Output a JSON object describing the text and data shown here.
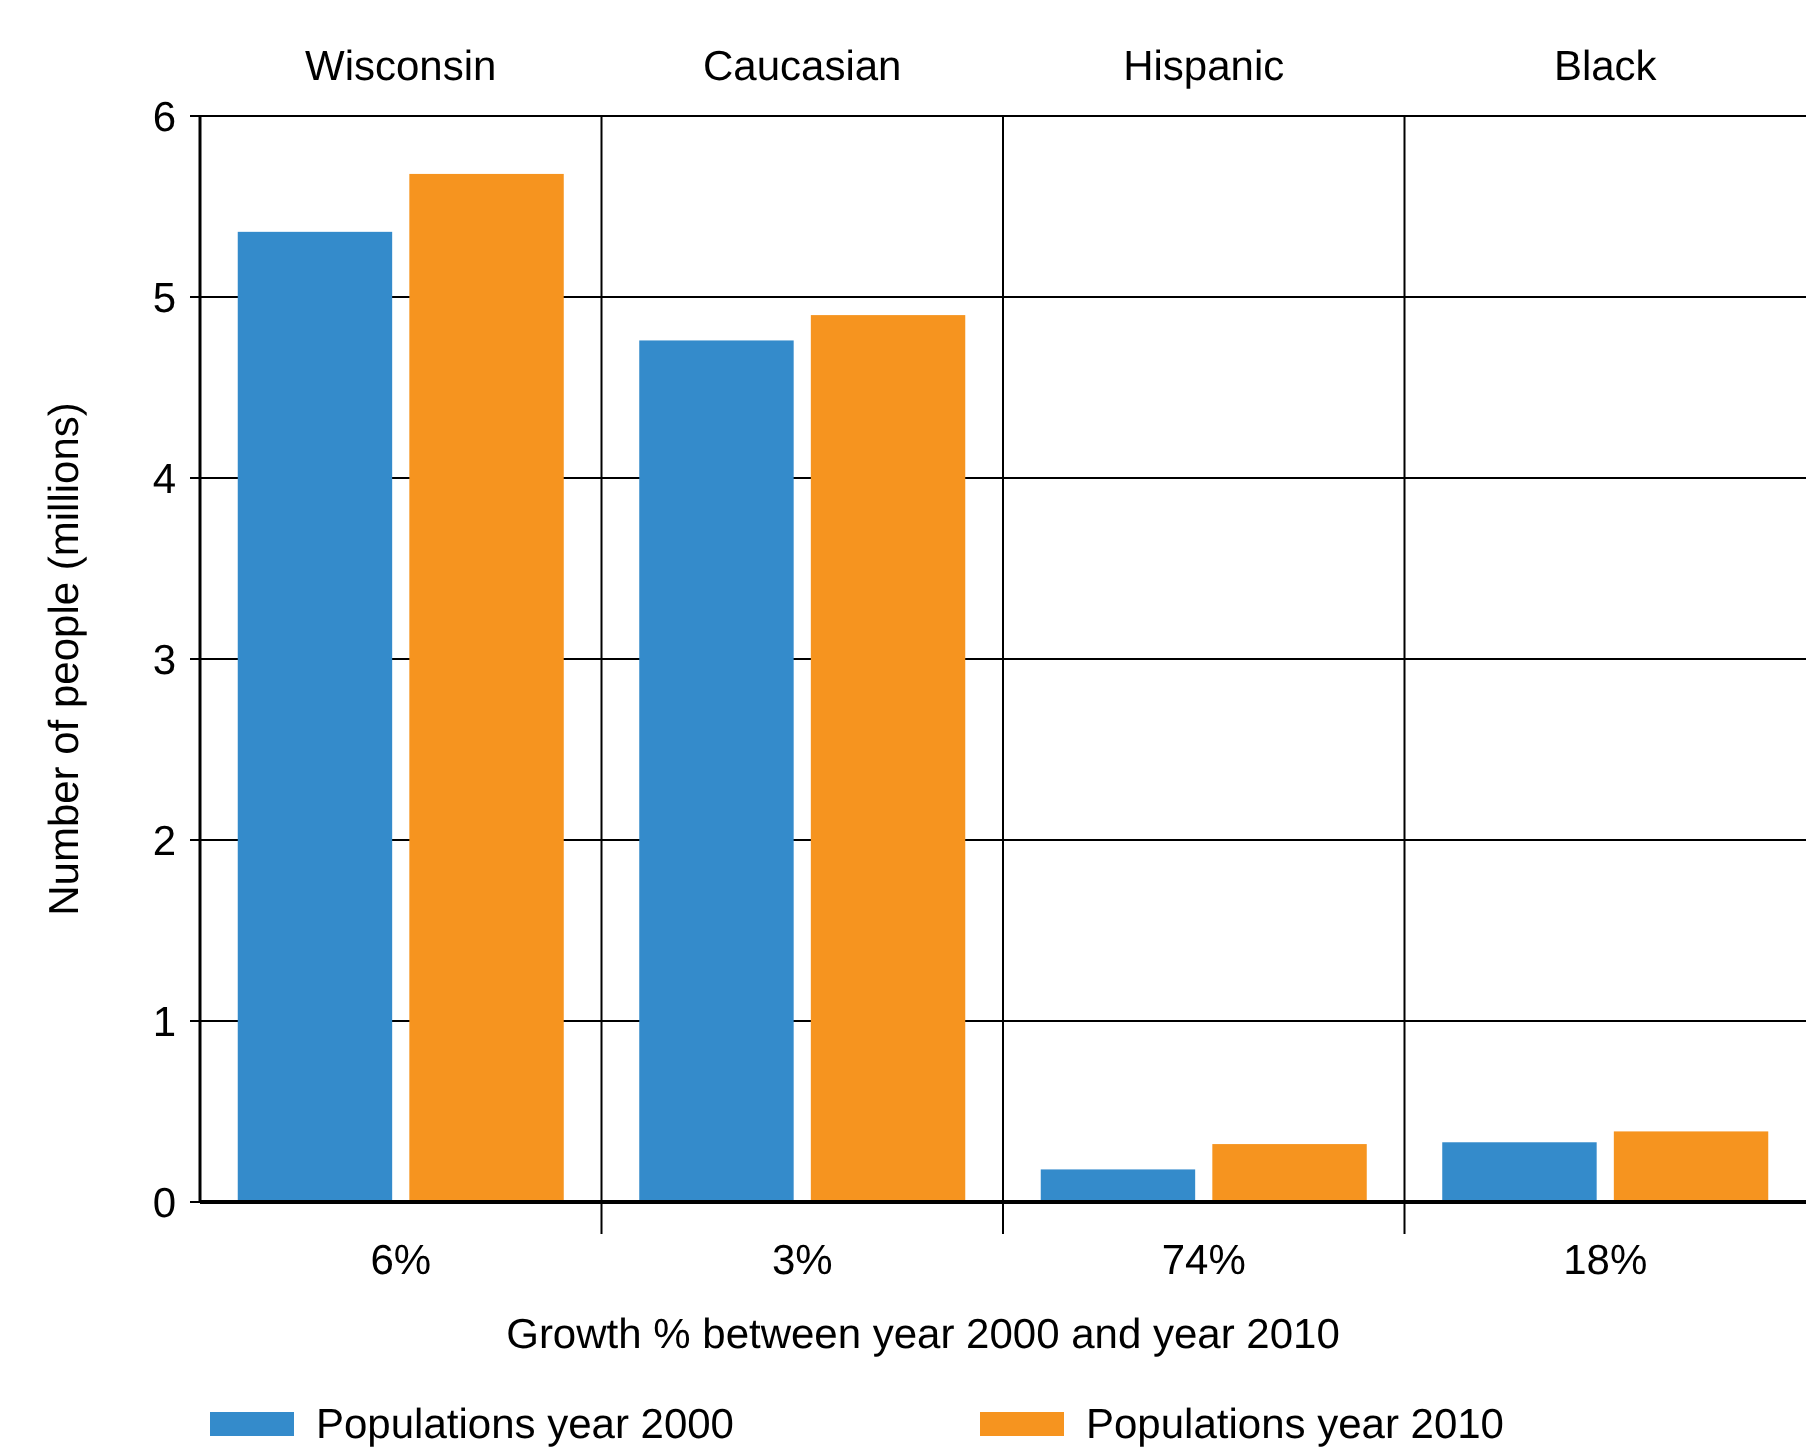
{
  "chart_data": {
    "type": "bar",
    "categories": [
      "Wisconsin",
      "Caucasian",
      "Hispanic",
      "Black"
    ],
    "xlabel": "Growth % between year 2000 and year 2010",
    "ylabel": "Number of people (millions)",
    "series": [
      {
        "name": "Populations year 2000",
        "color": "#348bcb",
        "values": [
          5.36,
          4.76,
          0.18,
          0.33
        ]
      },
      {
        "name": "Populations year 2010",
        "color": "#f6941f",
        "values": [
          5.68,
          4.9,
          0.32,
          0.39
        ]
      }
    ],
    "ylim": [
      0,
      6
    ],
    "yticks": [
      0,
      1,
      2,
      3,
      4,
      5,
      6
    ],
    "grid": "y",
    "legend": "bottom",
    "annotations": [
      "6%",
      "3%",
      "74%",
      "18%"
    ]
  }
}
